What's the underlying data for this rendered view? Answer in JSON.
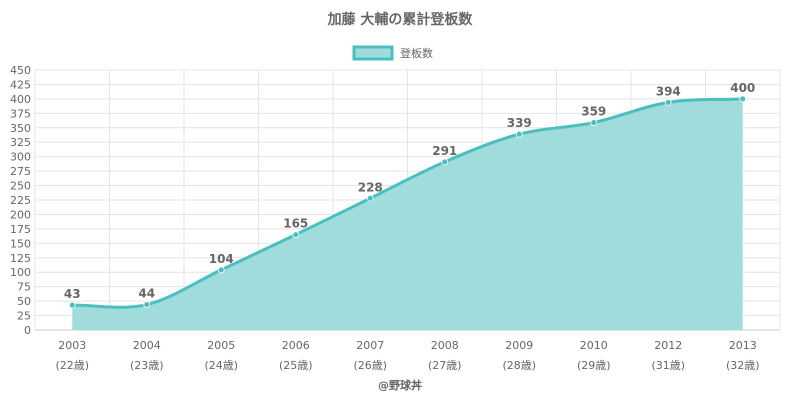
{
  "chart_data": {
    "type": "area",
    "title": "加藤 大輔の累計登板数",
    "series": [
      {
        "name": "登板数",
        "values": [
          43,
          44,
          104,
          165,
          228,
          291,
          339,
          359,
          394,
          400
        ]
      }
    ],
    "categories": [
      "2003",
      "2004",
      "2005",
      "2006",
      "2007",
      "2008",
      "2009",
      "2010",
      "2012",
      "2013"
    ],
    "age_labels": [
      "(22歳)",
      "(23歳)",
      "(24歳)",
      "(25歳)",
      "(26歳)",
      "(27歳)",
      "(28歳)",
      "(29歳)",
      "(31歳)",
      "(32歳)"
    ],
    "ylim": [
      0,
      450
    ],
    "yticks": [
      0,
      25,
      50,
      75,
      100,
      125,
      150,
      175,
      200,
      225,
      250,
      275,
      300,
      325,
      350,
      375,
      400,
      425,
      450
    ],
    "grid": true,
    "legend_position": "top-center",
    "colors": {
      "line": "#4bbfbf",
      "fill": "#a0dcdc",
      "grid": "#e4e4e4",
      "axis": "#cccccc",
      "text": "#666666"
    }
  },
  "footer": {
    "credit": "@野球丼"
  }
}
